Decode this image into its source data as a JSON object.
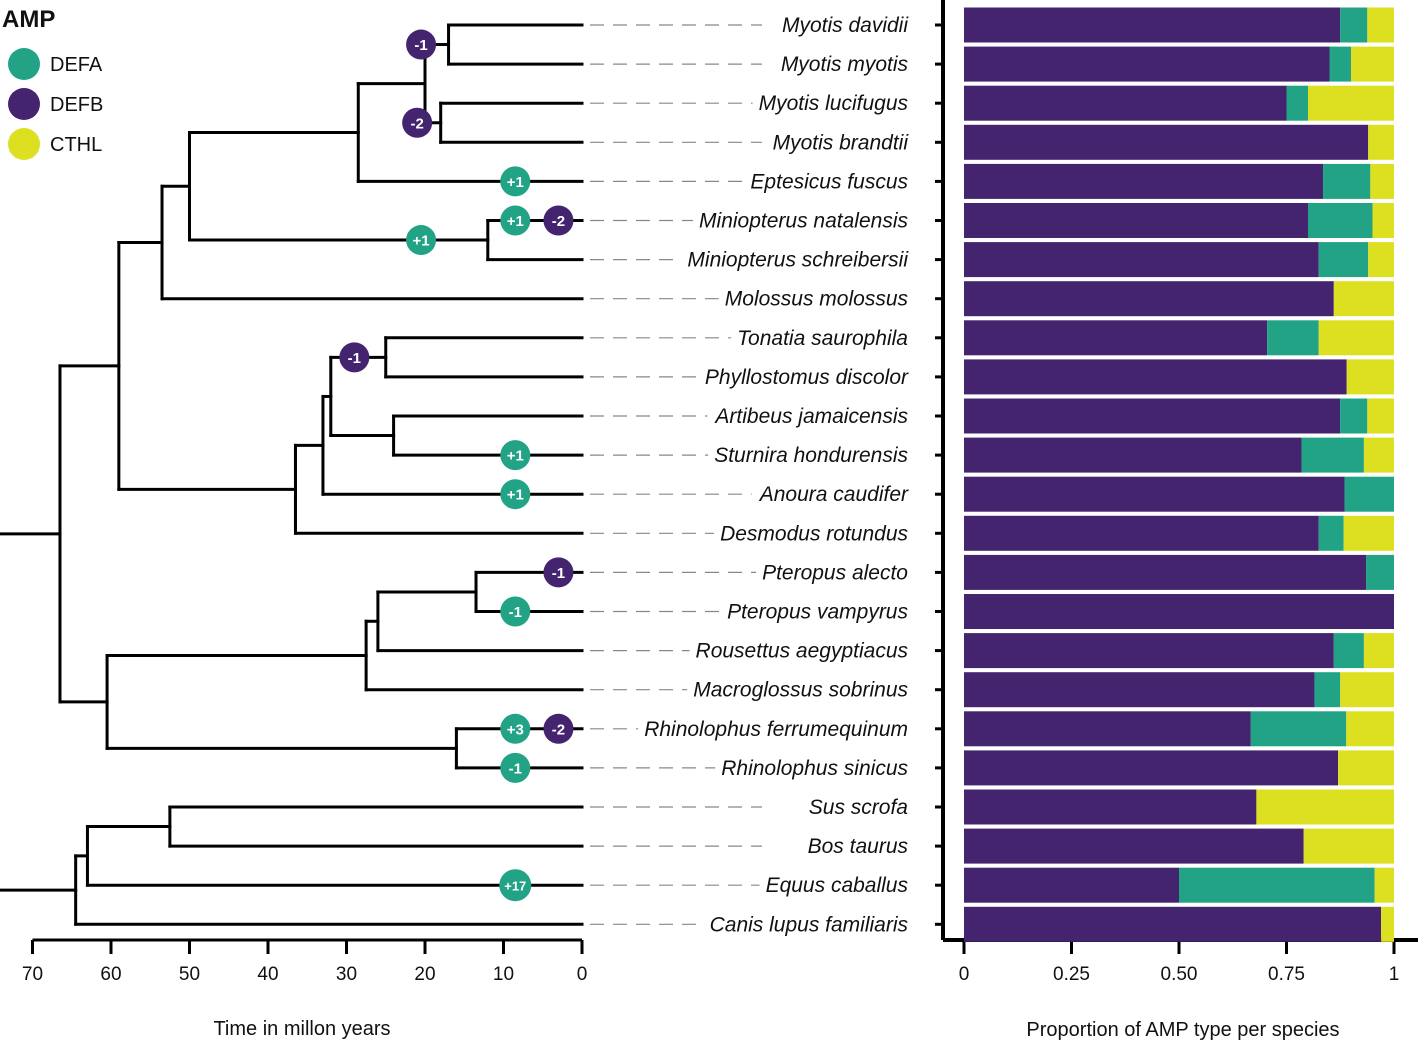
{
  "legend": {
    "title": "AMP",
    "items": [
      {
        "label": "DEFA",
        "color": "#22a386"
      },
      {
        "label": "DEFB",
        "color": "#44246e"
      },
      {
        "label": "CTHL",
        "color": "#dde021"
      }
    ]
  },
  "chart_data": [
    {
      "type": "tree",
      "xlabel": "Time in millon years",
      "xlim": [
        70,
        0
      ],
      "ticks": [
        70,
        60,
        50,
        40,
        30,
        20,
        10,
        0
      ],
      "tips": [
        "Myotis davidii",
        "Myotis myotis",
        "Myotis lucifugus",
        "Myotis brandtii",
        "Eptesicus fuscus",
        "Miniopterus natalensis",
        "Miniopterus schreibersii",
        "Molossus molossus",
        "Tonatia saurophila",
        "Phyllostomus discolor",
        "Artibeus jamaicensis",
        "Sturnira hondurensis",
        "Anoura caudifer",
        "Desmodus rotundus",
        "Pteropus alecto",
        "Pteropus vampyrus",
        "Rousettus aegyptiacus",
        "Macroglossus sobrinus",
        "Rhinolophus ferrumequinum",
        "Rhinolophus sinicus",
        "Sus scrofa",
        "Bos taurus",
        "Equus caballus",
        "Canis lupus familiaris"
      ],
      "nodes": [
        {
          "id": "n1",
          "age": 17,
          "children": [
            "Myotis davidii",
            "Myotis myotis"
          ]
        },
        {
          "id": "n2",
          "age": 18,
          "children": [
            "Myotis lucifugus",
            "Myotis brandtii"
          ]
        },
        {
          "id": "n3",
          "age": 20,
          "children": [
            "n1",
            "n2"
          ]
        },
        {
          "id": "n4",
          "age": 28.5,
          "children": [
            "n3",
            "Eptesicus fuscus"
          ]
        },
        {
          "id": "n5",
          "age": 12,
          "children": [
            "Miniopterus natalensis",
            "Miniopterus schreibersii"
          ]
        },
        {
          "id": "n6",
          "age": 50,
          "children": [
            "n4",
            "n5"
          ]
        },
        {
          "id": "n7",
          "age": 53.5,
          "children": [
            "n6",
            "Molossus molossus"
          ]
        },
        {
          "id": "n8",
          "age": 25,
          "children": [
            "Tonatia saurophila",
            "Phyllostomus discolor"
          ]
        },
        {
          "id": "n9",
          "age": 24,
          "children": [
            "Artibeus jamaicensis",
            "Sturnira hondurensis"
          ]
        },
        {
          "id": "n10",
          "age": 32,
          "children": [
            "n8",
            "n9"
          ]
        },
        {
          "id": "n11",
          "age": 33,
          "children": [
            "n10",
            "Anoura caudifer"
          ]
        },
        {
          "id": "n12",
          "age": 36.5,
          "children": [
            "n11",
            "Desmodus rotundus"
          ]
        },
        {
          "id": "n13",
          "age": 59,
          "children": [
            "n7",
            "n12"
          ]
        },
        {
          "id": "n14",
          "age": 13.5,
          "children": [
            "Pteropus alecto",
            "Pteropus vampyrus"
          ]
        },
        {
          "id": "n15",
          "age": 26,
          "children": [
            "n14",
            "Rousettus aegyptiacus"
          ]
        },
        {
          "id": "n16",
          "age": 27.5,
          "children": [
            "n15",
            "Macroglossus sobrinus"
          ]
        },
        {
          "id": "n17",
          "age": 16,
          "children": [
            "Rhinolophus ferrumequinum",
            "Rhinolophus sinicus"
          ]
        },
        {
          "id": "n18",
          "age": 60.5,
          "children": [
            "n16",
            "n17"
          ]
        },
        {
          "id": "n19",
          "age": 66.5,
          "children": [
            "n13",
            "n18"
          ]
        },
        {
          "id": "n20",
          "age": 52.5,
          "children": [
            "Sus scrofa",
            "Bos taurus"
          ]
        },
        {
          "id": "n21",
          "age": 63,
          "children": [
            "n20",
            "Equus caballus"
          ]
        },
        {
          "id": "n22",
          "age": 64.5,
          "children": [
            "n21",
            "Canis lupus familiaris"
          ]
        },
        {
          "id": "root",
          "age": 74.5,
          "children": [
            "n19",
            "n22"
          ]
        }
      ],
      "events": [
        {
          "label": "-1",
          "type": "DEFB",
          "target": "n1",
          "age": 20.5
        },
        {
          "label": "-2",
          "type": "DEFB",
          "target": "n2",
          "age": 21
        },
        {
          "label": "+1",
          "type": "DEFA",
          "target": "Eptesicus fuscus",
          "age": 8.5
        },
        {
          "label": "+1",
          "type": "DEFA",
          "target": "n5",
          "age": 20.5
        },
        {
          "label": "+1",
          "type": "DEFA",
          "target": "Miniopterus natalensis",
          "age": 8.5
        },
        {
          "label": "-2",
          "type": "DEFB",
          "target": "Miniopterus natalensis",
          "age": 3
        },
        {
          "label": "-1",
          "type": "DEFB",
          "target": "n8",
          "age": 29
        },
        {
          "label": "+1",
          "type": "DEFA",
          "target": "Sturnira hondurensis",
          "age": 8.5
        },
        {
          "label": "+1",
          "type": "DEFA",
          "target": "Anoura caudifer",
          "age": 8.5
        },
        {
          "label": "-1",
          "type": "DEFB",
          "target": "Pteropus alecto",
          "age": 3
        },
        {
          "label": "-1",
          "type": "DEFA",
          "target": "Pteropus vampyrus",
          "age": 8.5
        },
        {
          "label": "+3",
          "type": "DEFA",
          "target": "Rhinolophus ferrumequinum",
          "age": 8.5
        },
        {
          "label": "-2",
          "type": "DEFB",
          "target": "Rhinolophus ferrumequinum",
          "age": 3
        },
        {
          "label": "-1",
          "type": "DEFA",
          "target": "Rhinolophus sinicus",
          "age": 8.5
        },
        {
          "label": "+17",
          "type": "DEFA",
          "target": "Equus caballus",
          "age": 8.5
        }
      ]
    },
    {
      "type": "stacked-bar",
      "orientation": "horizontal",
      "xlabel": "Proportion of AMP type per species",
      "xlim": [
        0,
        1
      ],
      "ticks": [
        0,
        0.25,
        0.5,
        0.75,
        1
      ],
      "tick_labels": [
        "0",
        "0.25",
        "0.50",
        "0.75",
        "1"
      ],
      "series_names": [
        "DEFB",
        "DEFA",
        "CTHL"
      ],
      "rows": [
        {
          "species": "Myotis davidii",
          "values": [
            0.875,
            0.063,
            0.062
          ]
        },
        {
          "species": "Myotis myotis",
          "values": [
            0.85,
            0.05,
            0.1
          ]
        },
        {
          "species": "Myotis lucifugus",
          "values": [
            0.75,
            0.05,
            0.2
          ]
        },
        {
          "species": "Myotis brandtii",
          "values": [
            0.94,
            0.0,
            0.06
          ]
        },
        {
          "species": "Eptesicus fuscus",
          "values": [
            0.835,
            0.11,
            0.055
          ]
        },
        {
          "species": "Miniopterus natalensis",
          "values": [
            0.8,
            0.15,
            0.05
          ]
        },
        {
          "species": "Miniopterus schreibersii",
          "values": [
            0.825,
            0.115,
            0.06
          ]
        },
        {
          "species": "Molossus molossus",
          "values": [
            0.86,
            0.0,
            0.14
          ]
        },
        {
          "species": "Tonatia saurophila",
          "values": [
            0.705,
            0.12,
            0.175
          ]
        },
        {
          "species": "Phyllostomus discolor",
          "values": [
            0.89,
            0.0,
            0.11
          ]
        },
        {
          "species": "Artibeus jamaicensis",
          "values": [
            0.875,
            0.063,
            0.062
          ]
        },
        {
          "species": "Sturnira hondurensis",
          "values": [
            0.785,
            0.145,
            0.07
          ]
        },
        {
          "species": "Anoura caudifer",
          "values": [
            0.885,
            0.115,
            0.0
          ]
        },
        {
          "species": "Desmodus rotundus",
          "values": [
            0.825,
            0.058,
            0.117
          ]
        },
        {
          "species": "Pteropus alecto",
          "values": [
            0.935,
            0.065,
            0.0
          ]
        },
        {
          "species": "Pteropus vampyrus",
          "values": [
            1.0,
            0.0,
            0.0
          ]
        },
        {
          "species": "Rousettus aegyptiacus",
          "values": [
            0.86,
            0.07,
            0.07
          ]
        },
        {
          "species": "Macroglossus sobrinus",
          "values": [
            0.815,
            0.06,
            0.125
          ]
        },
        {
          "species": "Rhinolophus ferrumequinum",
          "values": [
            0.667,
            0.222,
            0.111
          ]
        },
        {
          "species": "Rhinolophus sinicus",
          "values": [
            0.87,
            0.0,
            0.13
          ]
        },
        {
          "species": "Sus scrofa",
          "values": [
            0.68,
            0.0,
            0.32
          ]
        },
        {
          "species": "Bos taurus",
          "values": [
            0.79,
            0.0,
            0.21
          ]
        },
        {
          "species": "Equus caballus",
          "values": [
            0.5,
            0.455,
            0.045
          ]
        },
        {
          "species": "Canis lupus familiaris",
          "values": [
            0.97,
            0.0,
            0.03
          ]
        }
      ]
    }
  ]
}
